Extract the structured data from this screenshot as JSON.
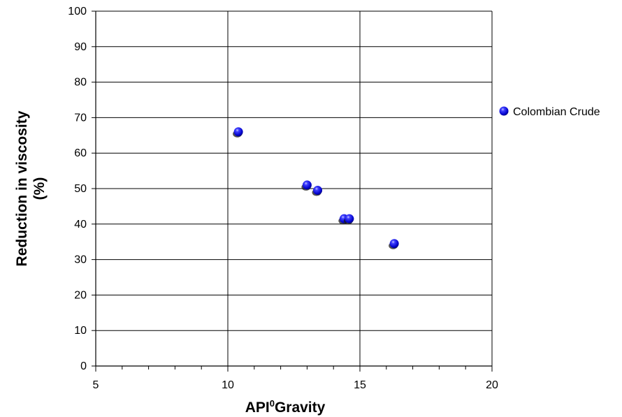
{
  "chart_data": {
    "type": "scatter",
    "xlabel": "API",
    "xlabel_sup": "0",
    "xlabel_rest": "Gravity",
    "ylabel_line1": "Reduction in viscosity",
    "ylabel_line2": "(%)",
    "xlim": [
      5,
      20
    ],
    "ylim": [
      0,
      100
    ],
    "xticks": [
      5,
      10,
      15,
      20
    ],
    "yticks": [
      0,
      10,
      20,
      30,
      40,
      50,
      60,
      70,
      80,
      90,
      100
    ],
    "x_minor_step": 1,
    "vertical_gridlines": [
      10,
      15,
      20
    ],
    "horizontal_gridlines": true,
    "legend_position": "right",
    "series": [
      {
        "name": "Colombian Crude",
        "color": "#1a1aff",
        "points": [
          {
            "x": 10.4,
            "y": 66
          },
          {
            "x": 13.0,
            "y": 51
          },
          {
            "x": 13.4,
            "y": 49.5
          },
          {
            "x": 14.4,
            "y": 41.5
          },
          {
            "x": 14.6,
            "y": 41.5
          },
          {
            "x": 16.3,
            "y": 34.5
          }
        ]
      }
    ]
  }
}
